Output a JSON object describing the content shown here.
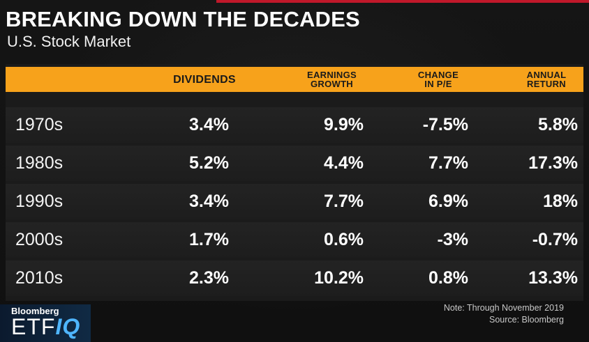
{
  "header": {
    "title": "BREAKING DOWN THE DECADES",
    "subtitle": "U.S. Stock Market"
  },
  "table": {
    "columns": [
      {
        "label": "DIVIDENDS"
      },
      {
        "label_line1": "EARNINGS",
        "label_line2": "GROWTH"
      },
      {
        "label_line1": "CHANGE",
        "label_line2": "IN P/E"
      },
      {
        "label_line1": "ANNUAL",
        "label_line2": "RETURN"
      }
    ],
    "rows": [
      {
        "decade": "1970s",
        "dividends": "3.4%",
        "earnings_growth": "9.9%",
        "change_pe": "-7.5%",
        "annual_return": "5.8%"
      },
      {
        "decade": "1980s",
        "dividends": "5.2%",
        "earnings_growth": "4.4%",
        "change_pe": "7.7%",
        "annual_return": "17.3%"
      },
      {
        "decade": "1990s",
        "dividends": "3.4%",
        "earnings_growth": "7.7%",
        "change_pe": "6.9%",
        "annual_return": "18%"
      },
      {
        "decade": "2000s",
        "dividends": "1.7%",
        "earnings_growth": "0.6%",
        "change_pe": "-3%",
        "annual_return": "-0.7%"
      },
      {
        "decade": "2010s",
        "dividends": "2.3%",
        "earnings_growth": "10.2%",
        "change_pe": "0.8%",
        "annual_return": "13.3%"
      }
    ]
  },
  "footer": {
    "note": "Note: Through November 2019",
    "source": "Source: Bloomberg"
  },
  "logo": {
    "brand": "Bloomberg",
    "etf": "ETF",
    "iq": "IQ"
  },
  "colors": {
    "header_bar": "#f7a21b",
    "accent_red": "#c0182a",
    "background": "#141414",
    "row_background": "#232323",
    "logo_iq": "#4fb6ff"
  }
}
